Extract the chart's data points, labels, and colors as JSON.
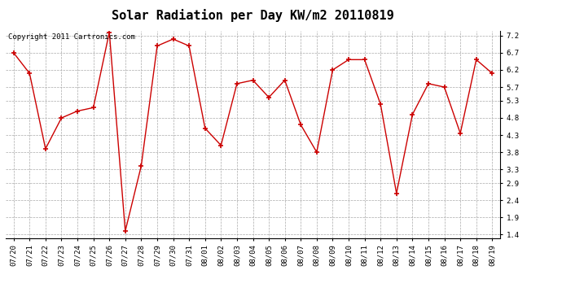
{
  "title": "Solar Radiation per Day KW/m2 20110819",
  "copyright_text": "Copyright 2011 Cartronics.com",
  "dates": [
    "07/20",
    "07/21",
    "07/22",
    "07/23",
    "07/24",
    "07/25",
    "07/26",
    "07/27",
    "07/28",
    "07/29",
    "07/30",
    "07/31",
    "08/01",
    "08/02",
    "08/03",
    "08/04",
    "08/05",
    "08/06",
    "08/07",
    "08/08",
    "08/09",
    "08/10",
    "08/11",
    "08/12",
    "08/13",
    "08/14",
    "08/15",
    "08/16",
    "08/17",
    "08/18",
    "08/19"
  ],
  "values": [
    6.7,
    6.1,
    3.9,
    4.8,
    5.0,
    5.1,
    7.3,
    1.5,
    3.4,
    6.9,
    7.1,
    6.9,
    4.5,
    4.0,
    5.8,
    5.9,
    5.4,
    5.9,
    4.6,
    3.8,
    6.2,
    6.5,
    6.5,
    5.2,
    2.6,
    4.9,
    5.8,
    5.7,
    4.35,
    6.5,
    6.1
  ],
  "line_color": "#cc0000",
  "marker_color": "#cc0000",
  "bg_color": "#ffffff",
  "grid_color": "#aaaaaa",
  "yticks": [
    1.4,
    1.9,
    2.4,
    2.9,
    3.3,
    3.8,
    4.3,
    4.8,
    5.3,
    5.7,
    6.2,
    6.7,
    7.2
  ],
  "ylim": [
    1.3,
    7.35
  ],
  "title_fontsize": 11,
  "tick_fontsize": 6.5,
  "copyright_fontsize": 6.5
}
